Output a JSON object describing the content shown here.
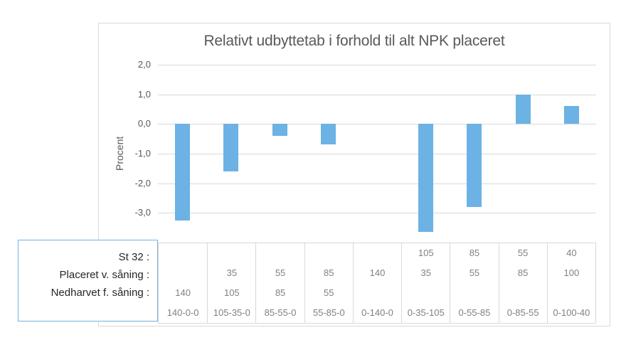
{
  "page": {
    "background": "#FFFFFF"
  },
  "chart_data": {
    "type": "bar",
    "title": "Relativt udbyttetab i forhold til alt NPK placeret",
    "xlabel": "",
    "ylabel": "Procent",
    "categories": [
      "140-0-0",
      "105-35-0",
      "85-55-0",
      "55-85-0",
      "0-140-0",
      "0-35-105",
      "0-55-85",
      "0-85-55",
      "0-100-40"
    ],
    "values": [
      -3.25,
      -1.6,
      -0.4,
      -0.7,
      0,
      -3.65,
      -2.8,
      1.0,
      0.6
    ],
    "ylim": [
      -4.0,
      2.0
    ],
    "yticks": [
      2.0,
      1.0,
      0.0,
      -1.0,
      -2.0,
      -3.0
    ],
    "ytick_labels": [
      "2,0",
      "1,0",
      "0,0",
      "-1,0",
      "-2,0",
      "-3,0"
    ],
    "grid": true,
    "legend_position": "none",
    "bar_color": "#6CB2E4"
  },
  "data_table": {
    "rows": [
      {
        "label": "St 32 :",
        "values": [
          "",
          "",
          "",
          "",
          "",
          "105",
          "85",
          "55",
          "40"
        ]
      },
      {
        "label": "Placeret v. såning :",
        "values": [
          "",
          "35",
          "55",
          "85",
          "140",
          "35",
          "55",
          "85",
          "100"
        ]
      },
      {
        "label": "Nedharvet f. såning :",
        "values": [
          "140",
          "105",
          "85",
          "55",
          "",
          "",
          "",
          "",
          ""
        ]
      }
    ]
  },
  "colors": {
    "bar": "#6CB2E4",
    "gridline": "#D9D9D9",
    "frame_border": "#D9D9D9",
    "axis_text": "#595959",
    "table_text": "#808080",
    "title_text": "#595959",
    "box_border": "#74B2E0",
    "box_text": "#262626",
    "page_bg": "#FFFFFF"
  }
}
